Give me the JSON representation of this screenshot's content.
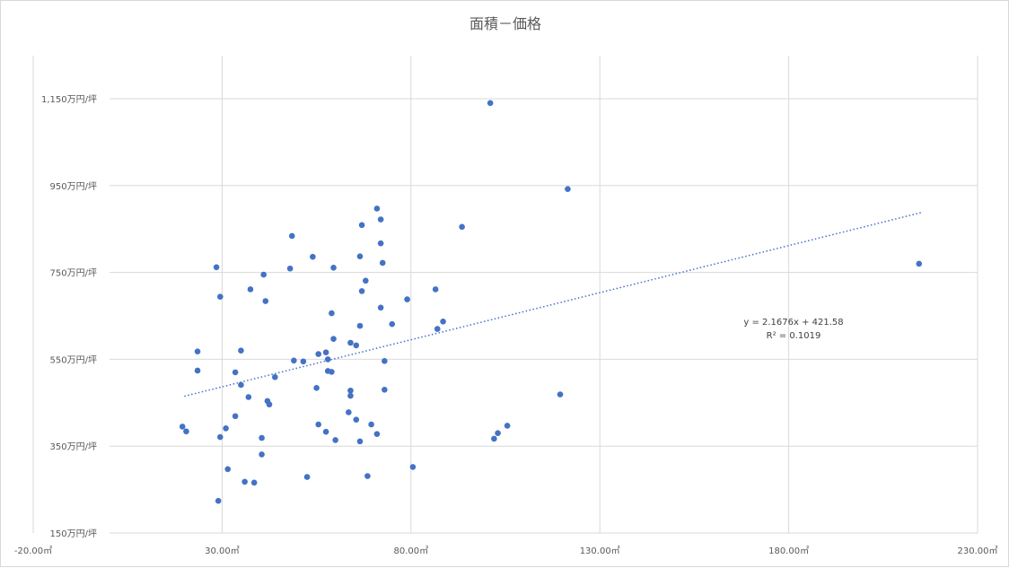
{
  "chart_data": {
    "type": "scatter",
    "title": "面積－価格",
    "xlabel": "",
    "ylabel": "",
    "xlim": [
      -20,
      230
    ],
    "ylim": [
      150,
      1150
    ],
    "x_ticks": [
      -20,
      30,
      80,
      130,
      180,
      230
    ],
    "x_tick_labels": [
      "-20.00㎡",
      "30.00㎡",
      "80.00㎡",
      "130.00㎡",
      "180.00㎡",
      "230.00㎡"
    ],
    "y_ticks": [
      150,
      350,
      550,
      750,
      950,
      1150
    ],
    "y_tick_labels": [
      "150万円/坪",
      "350万円/坪",
      "550万円/坪",
      "750万円/坪",
      "950万円/坪",
      "1,150万円/坪"
    ],
    "grid": true,
    "colors": {
      "marker": "#4472c4",
      "trendline": "#4472c4",
      "grid": "#d9d9d9",
      "text": "#595959"
    },
    "trendline": {
      "type": "linear-dotted",
      "slope": 2.1676,
      "intercept": 421.58,
      "x_range": [
        20,
        215
      ],
      "equation_label": "y = 2.1676x + 421.58",
      "r2_label": "R² = 0.1019"
    },
    "series": [
      {
        "points": [
          [
            101,
            1140
          ],
          [
            121.5,
            942
          ],
          [
            214.5,
            770
          ],
          [
            71,
            897
          ],
          [
            72,
            872
          ],
          [
            67,
            859
          ],
          [
            93.5,
            855
          ],
          [
            48.5,
            834
          ],
          [
            72,
            817
          ],
          [
            54,
            786
          ],
          [
            66.5,
            787
          ],
          [
            72.5,
            772
          ],
          [
            28.5,
            762
          ],
          [
            48,
            759
          ],
          [
            59.5,
            761
          ],
          [
            41,
            745
          ],
          [
            68,
            731
          ],
          [
            37.5,
            711
          ],
          [
            67,
            707
          ],
          [
            86.5,
            711
          ],
          [
            29.5,
            694
          ],
          [
            41.5,
            684
          ],
          [
            79,
            688
          ],
          [
            72,
            669
          ],
          [
            59,
            656
          ],
          [
            88.5,
            637
          ],
          [
            66.5,
            627
          ],
          [
            75,
            631
          ],
          [
            87,
            620
          ],
          [
            59.5,
            597
          ],
          [
            64,
            588
          ],
          [
            65.5,
            582
          ],
          [
            23.5,
            568
          ],
          [
            35,
            570
          ],
          [
            55.5,
            562
          ],
          [
            57.5,
            566
          ],
          [
            51.5,
            545
          ],
          [
            58,
            550
          ],
          [
            73,
            546
          ],
          [
            49,
            547
          ],
          [
            23.5,
            524
          ],
          [
            33.5,
            520
          ],
          [
            58,
            523
          ],
          [
            59,
            521
          ],
          [
            44,
            509
          ],
          [
            35,
            491
          ],
          [
            55,
            484
          ],
          [
            73,
            480
          ],
          [
            64,
            478
          ],
          [
            64,
            466
          ],
          [
            37,
            463
          ],
          [
            42,
            454
          ],
          [
            42.5,
            446
          ],
          [
            119.5,
            469
          ],
          [
            33.5,
            419
          ],
          [
            63.5,
            428
          ],
          [
            65.5,
            411
          ],
          [
            55.5,
            400
          ],
          [
            69.5,
            400
          ],
          [
            19.5,
            395
          ],
          [
            20.5,
            384
          ],
          [
            31,
            391
          ],
          [
            105.5,
            397
          ],
          [
            103,
            380
          ],
          [
            102,
            367
          ],
          [
            29.5,
            371
          ],
          [
            40.5,
            369
          ],
          [
            60,
            364
          ],
          [
            66.5,
            361
          ],
          [
            57.5,
            383
          ],
          [
            71,
            378
          ],
          [
            40.5,
            331
          ],
          [
            80.5,
            302
          ],
          [
            31.5,
            297
          ],
          [
            68.5,
            281
          ],
          [
            52.5,
            279
          ],
          [
            36,
            268
          ],
          [
            38.5,
            266
          ],
          [
            29,
            224
          ]
        ]
      }
    ]
  }
}
